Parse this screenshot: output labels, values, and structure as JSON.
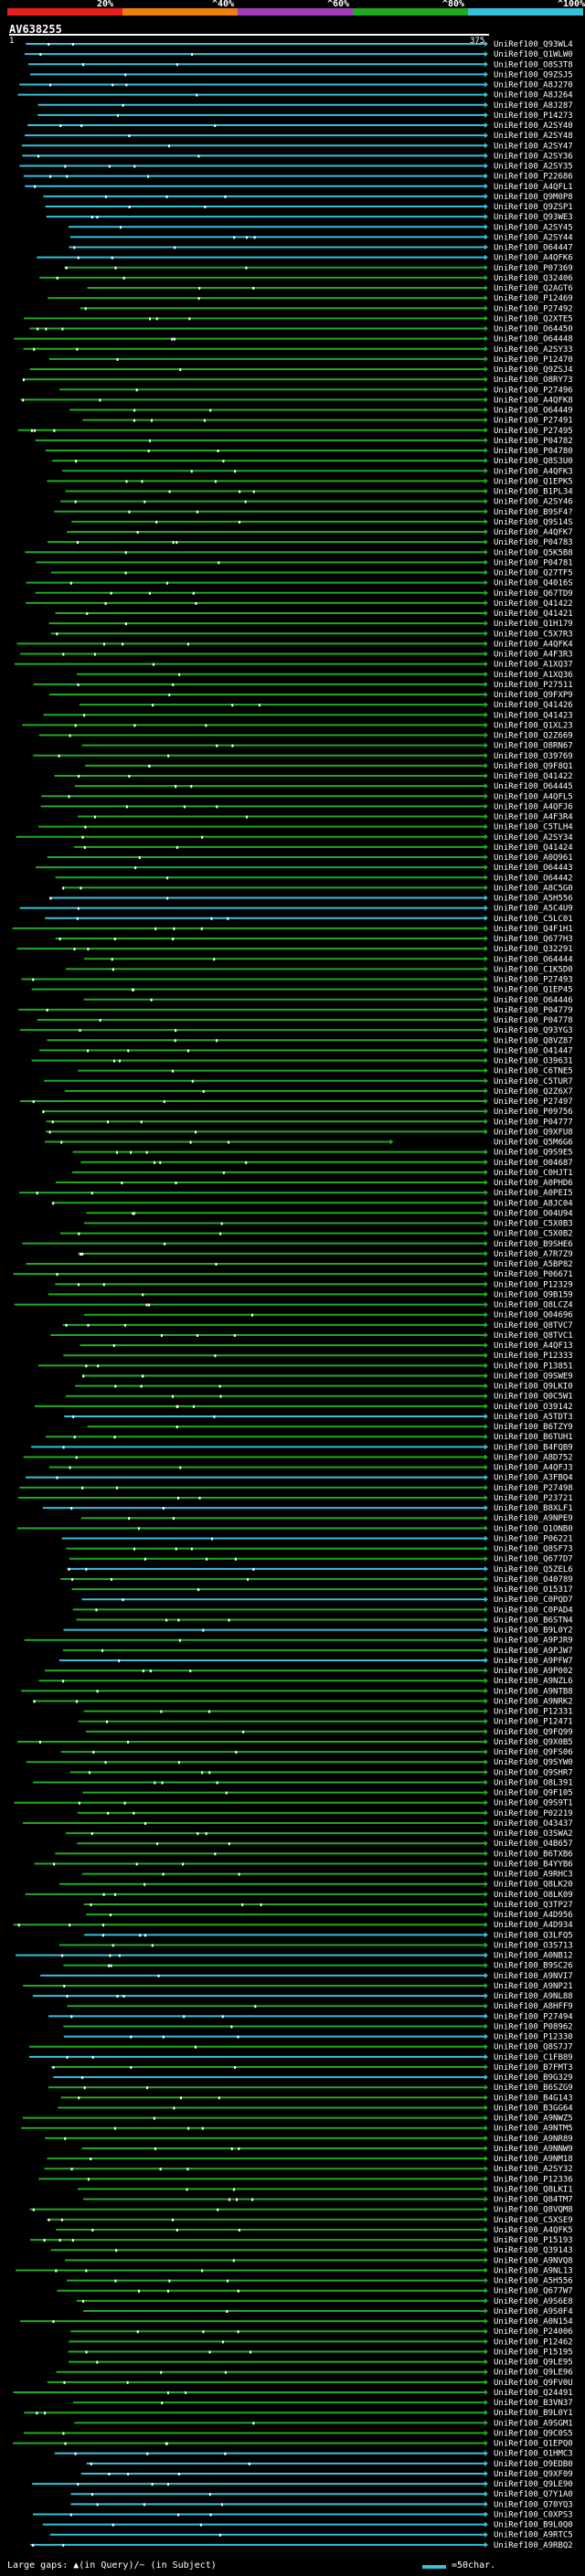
{
  "legend": {
    "ticks": [
      "20%",
      "^40%",
      "^60%",
      "^80%",
      "^100%"
    ],
    "colors": [
      "#e81d1d",
      "#ee7f0f",
      "#a23dbb",
      "#1faa1f",
      "#36c0d9"
    ]
  },
  "query": {
    "name": "AV638255",
    "start": "1",
    "end": "375"
  },
  "footer": {
    "gap_legend": "Large gaps: ▲(in Query)/~ (in Subject)",
    "scale_label": "=50char."
  },
  "chart_data": {
    "type": "alignment-overview",
    "title": "AV638255",
    "x_range": [
      1,
      375
    ],
    "color_legend": [
      {
        "range": "<20%",
        "color": "#e81d1d"
      },
      {
        "range": "20-40%",
        "color": "#ee7f0f"
      },
      {
        "range": "40-60%",
        "color": "#a23dbb"
      },
      {
        "range": "60-80%",
        "color": "#1faa1f"
      },
      {
        "range": "80-100%",
        "color": "#36c0d9"
      }
    ],
    "hits": [
      "UniRef100_Q93WL4",
      "UniRef100_Q1WLW0",
      "UniRef100_O8S3T8",
      "UniRef100_Q9ZSJ5",
      "UniRef100_A8J270",
      "UniRef100_A8J264",
      "UniRef100_A8J287",
      "UniRef100_P14273",
      "UniRef100_A2SY40",
      "UniRef100_A2SY48",
      "UniRef100_A2SY47",
      "UniRef100_A2SY36",
      "UniRef100_A2SY35",
      "UniRef100_P22686",
      "UniRef100_A4QFL1",
      "UniRef100_Q9M0P8",
      "UniRef100_Q9ZSP1",
      "UniRef100_Q93WE3",
      "UniRef100_A2SY45",
      "UniRef100_A2SY44",
      "UniRef100_O64447",
      "UniRef100_A4QFK6",
      "UniRef100_P07369",
      "UniRef100_Q32406",
      "UniRef100_Q2AGT6",
      "UniRef100_P12469",
      "UniRef100_P27492",
      "UniRef100_Q2XTE5",
      "UniRef100_O64450",
      "UniRef100_O64448",
      "UniRef100_A2SY33",
      "UniRef100_P12470",
      "UniRef100_Q9ZSJ4",
      "UniRef100_O8RY73",
      "UniRef100_P27496",
      "UniRef100_A4QFK8",
      "UniRef100_O64449",
      "UniRef100_P27491",
      "UniRef100_P27495",
      "UniRef100_P04782",
      "UniRef100_P04780",
      "UniRef100_Q8S3U0",
      "UniRef100_A4QFK3",
      "UniRef100_Q1EPK5",
      "UniRef100_B1PL34",
      "UniRef100_A2SY46",
      "UniRef100_B9SF4?",
      "UniRef100_Q9S14S",
      "UniRef100_A4QFK7",
      "UniRef100_P04783",
      "UniRef100_Q5K5B8",
      "UniRef100_P04781",
      "UniRef100_Q27TF5",
      "UniRef100_Q4016S",
      "UniRef100_Q67TD9",
      "UniRef100_Q41422",
      "UniRef100_Q41421",
      "UniRef100_Q1H179",
      "UniRef100_C5X7R3",
      "UniRef100_A4QFK4",
      "UniRef100_A4F3R3",
      "UniRef100_A1XQ37",
      "UniRef100_A1XQ36",
      "UniRef100_P27511",
      "UniRef100_Q9FXP9",
      "UniRef100_Q41426",
      "UniRef100_Q41423",
      "UniRef100_Q1XL23",
      "UniRef100_Q2Z669",
      "UniRef100_O8RN67",
      "UniRef100_O39769",
      "UniRef100_Q9F8Q1",
      "UniRef100_Q41422",
      "UniRef100_O64445",
      "UniRef100_A4QFL5",
      "UniRef100_A4QFJ6",
      "UniRef100_A4F3R4",
      "UniRef100_C5TLH4",
      "UniRef100_A2SY34",
      "UniRef100_Q41424",
      "UniRef100_A0Q961",
      "UniRef100_O64443",
      "UniRef100_O64442",
      "UniRef100_A8C5G0",
      "UniRef100_A5H556",
      "UniRef100_A5C4U9",
      "UniRef100_C5LC01",
      "UniRef100_Q4F1H1",
      "UniRef100_Q677H3",
      "UniRef100_Q32291",
      "UniRef100_O64444",
      "UniRef100_C1K5D0",
      "UniRef100_P27493",
      "UniRef100_Q1EP45",
      "UniRef100_O64446",
      "UniRef100_P04779",
      "UniRef100_P04778",
      "UniRef100_Q93YG3",
      "UniRef100_Q8VZ87",
      "UniRef100_O41447",
      "UniRef100_O39631",
      "UniRef100_C6TNE5",
      "UniRef100_C5TUR7",
      "UniRef100_Q2Z6X7",
      "UniRef100_P27497",
      "UniRef100_P09756",
      "UniRef100_P04777",
      "UniRef100_Q9XFU8",
      "UniRef100_Q5M6G6",
      "UniRef100_Q9S9E5",
      "UniRef100_O04687",
      "UniRef100_C0HJT1",
      "UniRef100_A0PHD6",
      "UniRef100_A0PEI5",
      "UniRef100_A8JC04",
      "UniRef100_O04U94",
      "UniRef100_C5X0B3",
      "UniRef100_C5X0B2",
      "UniRef100_B9SHE6",
      "UniRef100_A7R7Z9",
      "UniRef100_A5BP82",
      "UniRef100_P06671",
      "UniRef100_P12329",
      "UniRef100_Q9B159",
      "UniRef100_Q8LCZ4",
      "UniRef100_Q04696",
      "UniRef100_Q8TVC7",
      "UniRef100_Q8TVC1",
      "UniRef100_A4QF13",
      "UniRef100_P12333",
      "UniRef100_P13851",
      "UniRef100_Q9SWE9",
      "UniRef100_Q9LKI0",
      "UniRef100_Q0C5W1",
      "UniRef100_O39142",
      "UniRef100_A5TDT3",
      "UniRef100_B6TZY9",
      "UniRef100_B6TUH1",
      "UniRef100_B4FQB9",
      "UniRef100_A8D752",
      "UniRef100_A4QFJ3",
      "UniRef100_A3FBQ4",
      "UniRef100_P27498",
      "UniRef100_P23721",
      "UniRef100_B8XLF1",
      "UniRef100_A9NPE9",
      "UniRef100_Q1ONB0",
      "UniRef100_P06221",
      "UniRef100_Q8SF73",
      "UniRef100_Q677D7",
      "UniRef100_Q5ZEL6",
      "UniRef100_O40789",
      "UniRef100_O15317",
      "UniRef100_C0PQD7",
      "UniRef100_C0PAD4",
      "UniRef100_B6STN4",
      "UniRef100_B9L0Y2",
      "UniRef100_A9PJR9",
      "UniRef100_A9PJW7",
      "UniRef100_A9PFW7",
      "UniRef100_A9P002",
      "UniRef100_A9NZL6",
      "UniRef100_A9NTB8",
      "UniRef100_A9NRK2",
      "UniRef100_P12331",
      "UniRef100_P12471",
      "UniRef100_Q9FQ99",
      "UniRef100_Q9X0B5",
      "UniRef100_Q9FS06",
      "UniRef100_Q9SYW0",
      "UniRef100_Q9SHR7",
      "UniRef100_O8L391",
      "UniRef100_Q9F105",
      "UniRef100_Q9S9T1",
      "UniRef100_P02219",
      "UniRef100_O43437",
      "UniRef100_O3SWA2",
      "UniRef100_O4B657",
      "UniRef100_B6TXB6",
      "UniRef100_B4YYB6",
      "UniRef100_A9RHC3",
      "UniRef100_Q8LK20",
      "UniRef100_O8LK09",
      "UniRef100_Q3TP27",
      "UniRef100_A4D956",
      "UniRef100_A4D934",
      "UniRef100_Q3LFQ5",
      "UniRef100_O3S713",
      "UniRef100_A0NB12",
      "UniRef100_B9SC26",
      "UniRef100_A9NVI7",
      "UniRef100_A9NP21",
      "UniRef100_A9NL88",
      "UniRef100_A8HFF9",
      "UniRef100_P27494",
      "UniRef100_P08962",
      "UniRef100_P12330",
      "UniRef100_Q8S7J7",
      "UniRef100_C1FB89",
      "UniRef100_B7FMT3",
      "UniRef100_B9G329",
      "UniRef100_B6SZG9",
      "UniRef100_B4G143",
      "UniRef100_B3GG64",
      "UniRef100_A9NWZ5",
      "UniRef100_A9NTM5",
      "UniRef100_A9NR89",
      "UniRef100_A9NNW9",
      "UniRef100_A9NM18",
      "UniRef100_A2SY32",
      "UniRef100_P12336",
      "UniRef100_Q8LKI1",
      "UniRef100_Q84TM7",
      "UniRef100_Q8VQM8",
      "UniRef100_C5XSE9",
      "UniRef100_A4QFK5",
      "UniRef100_P15193",
      "UniRef100_Q39143",
      "UniRef100_A9NVQ8",
      "UniRef100_A9NL13",
      "UniRef100_A5H556",
      "UniRef100_Q677W7",
      "UniRef100_A9S6E8",
      "UniRef100_A9S0F4",
      "UniRef100_A0N154",
      "UniRef100_P24006",
      "UniRef100_P12462",
      "UniRef100_P15195",
      "UniRef100_Q9LE95",
      "UniRef100_Q9LE96",
      "UniRef100_Q9FV0U",
      "UniRef100_Q24491",
      "UniRef100_B3VN37",
      "UniRef100_B9L0Y1",
      "UniRef100_A9SGM1",
      "UniRef100_Q9C0S5",
      "UniRef100_Q1EPQ0",
      "UniRef100_O1HMC3",
      "UniRef100_O9EDB0",
      "UniRef100_Q9XF09",
      "UniRef100_Q9LE90",
      "UniRef100_Q7Y1A0",
      "UniRef100_Q70YQ3",
      "UniRef100_C0XPS3",
      "UniRef100_B9L0Q0",
      "UniRef100_A9RTC5",
      "UniRef100_A9RBQ2"
    ]
  }
}
